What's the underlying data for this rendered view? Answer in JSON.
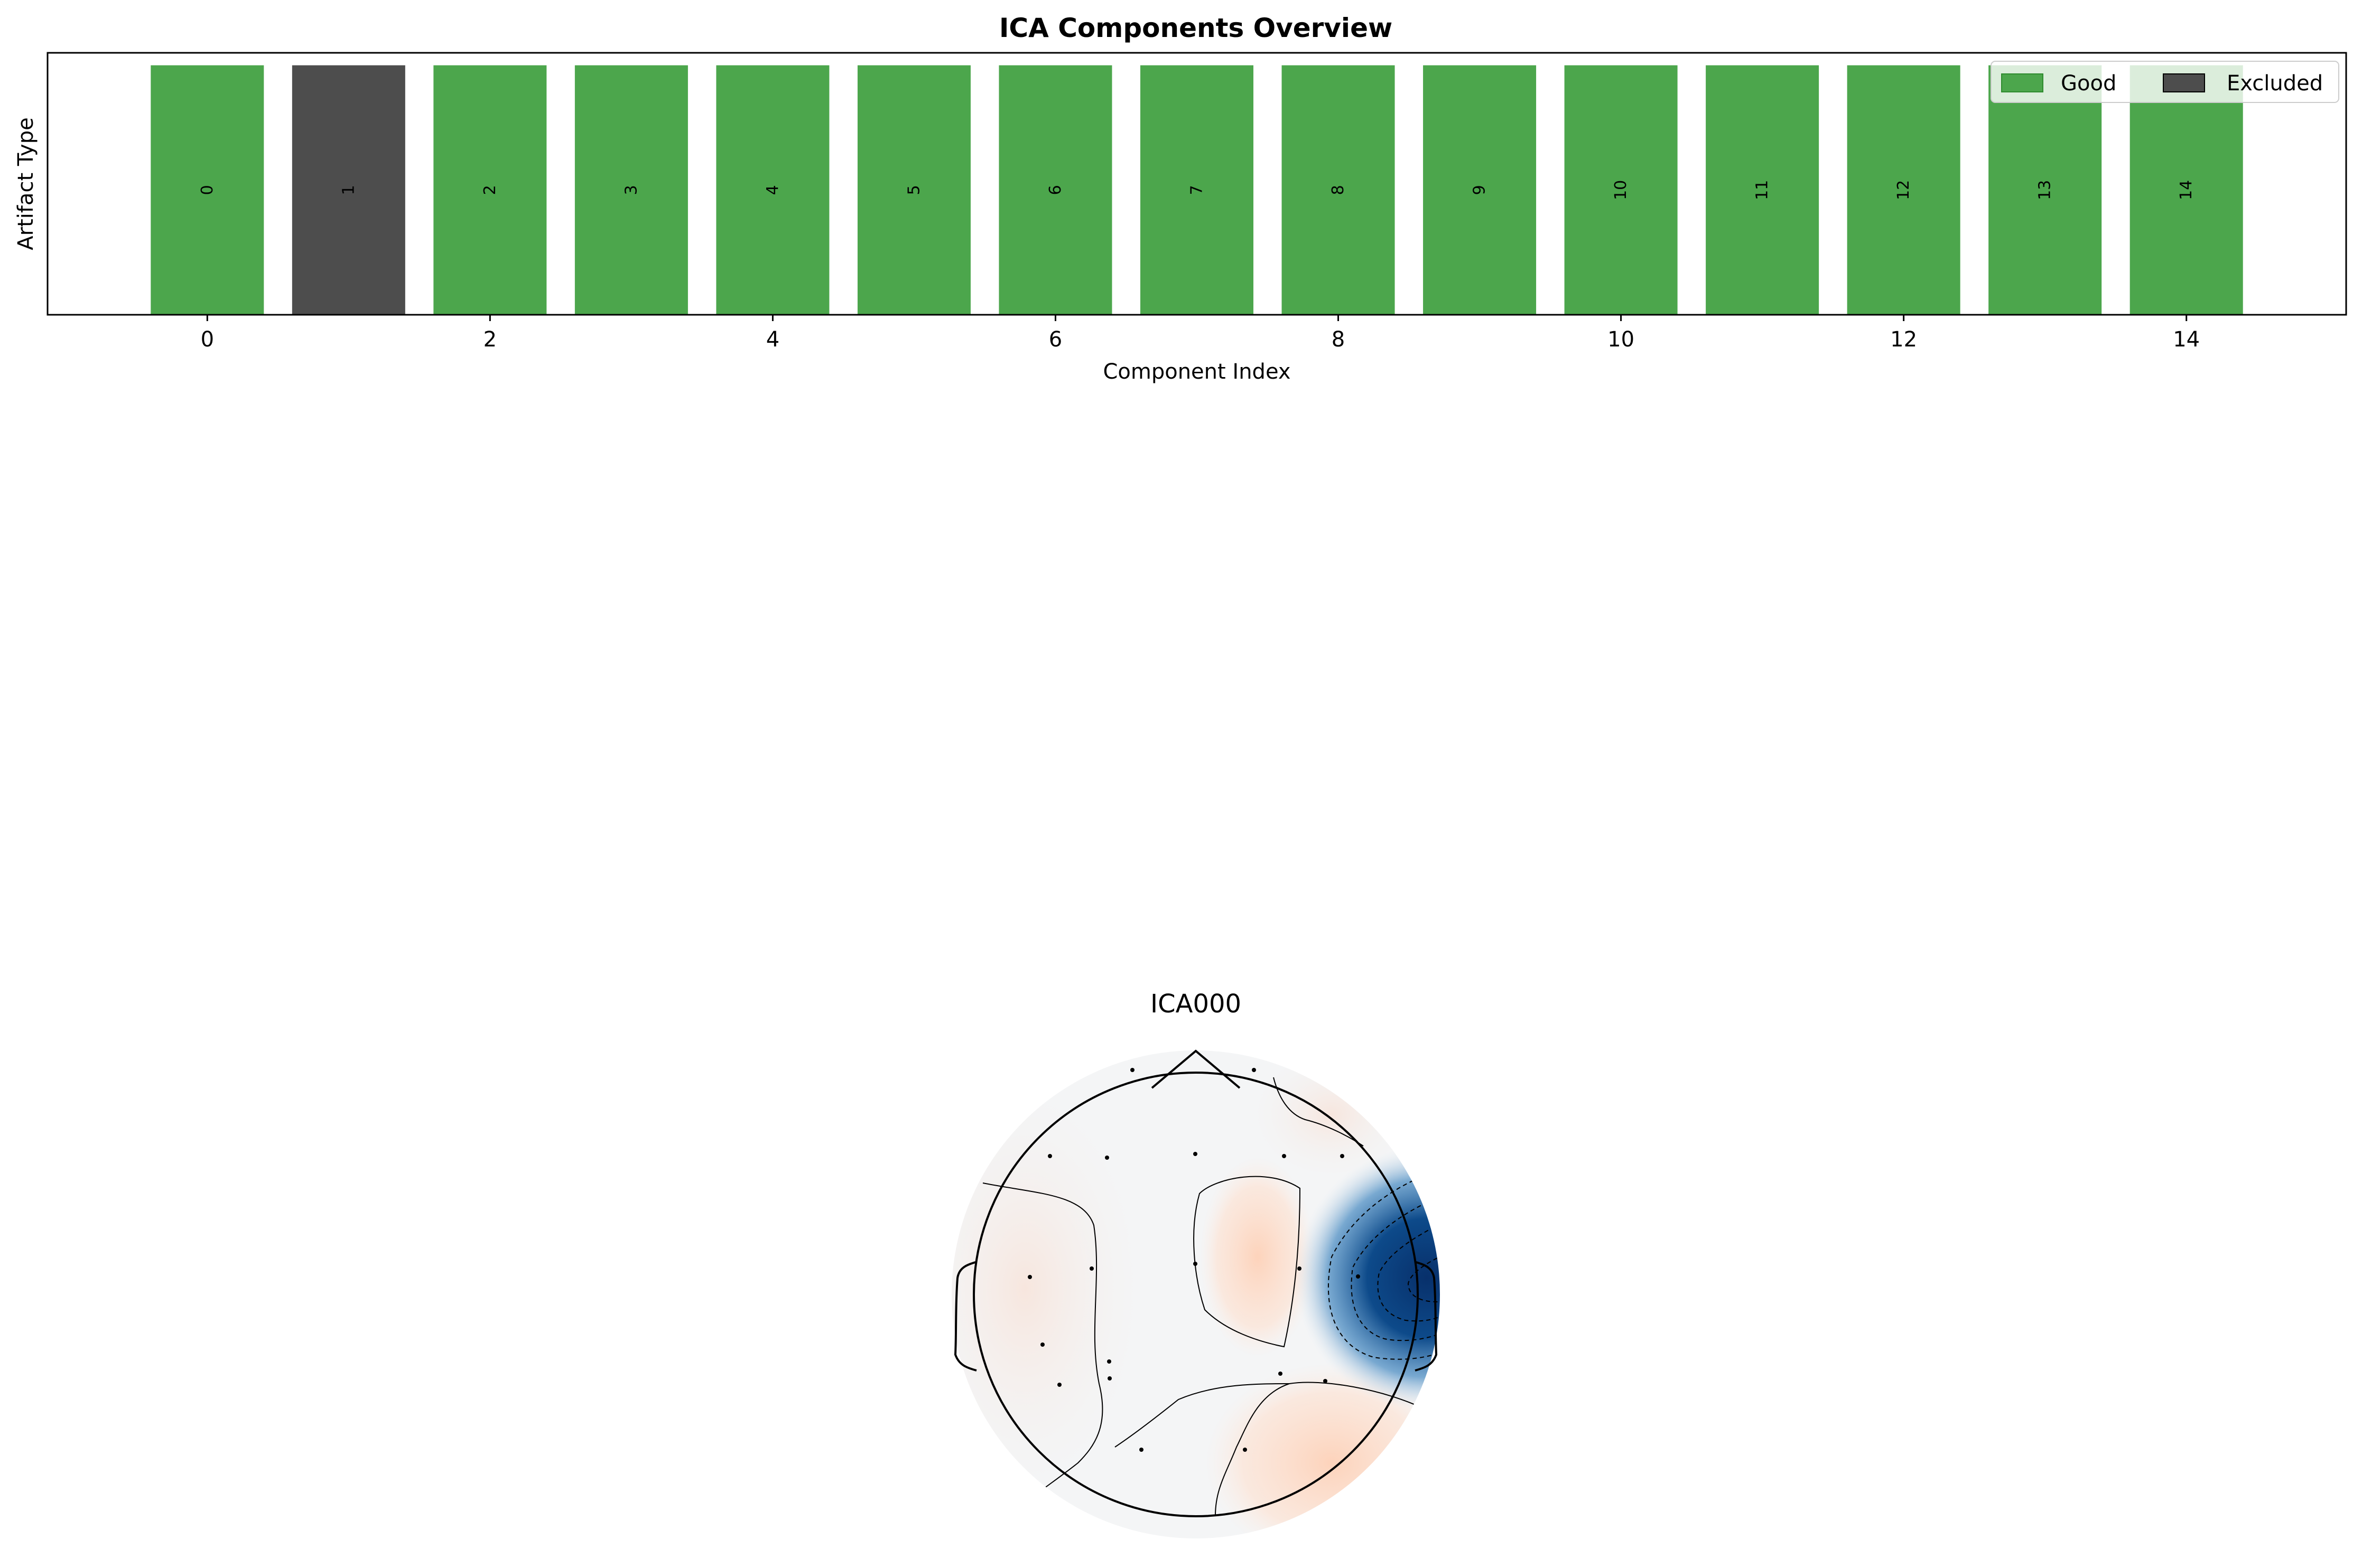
{
  "chart_data": [
    {
      "type": "bar",
      "title": "ICA Components Overview",
      "xlabel": "Component Index",
      "ylabel": "Artifact Type",
      "x": [
        0,
        1,
        2,
        3,
        4,
        5,
        6,
        7,
        8,
        9,
        10,
        11,
        12,
        13,
        14
      ],
      "values": [
        1,
        1,
        1,
        1,
        1,
        1,
        1,
        1,
        1,
        1,
        1,
        1,
        1,
        1,
        1
      ],
      "bar_labels": [
        "0",
        "1",
        "2",
        "3",
        "4",
        "5",
        "6",
        "7",
        "8",
        "9",
        "10",
        "11",
        "12",
        "13",
        "14"
      ],
      "status": [
        "Good",
        "Excluded",
        "Good",
        "Good",
        "Good",
        "Good",
        "Good",
        "Good",
        "Good",
        "Good",
        "Good",
        "Good",
        "Good",
        "Good",
        "Good"
      ],
      "xticks": [
        "0",
        "2",
        "4",
        "6",
        "8",
        "10",
        "12",
        "14"
      ],
      "xlim": [
        -1.13,
        15.13
      ],
      "ylim": [
        0,
        1.05
      ],
      "colors": {
        "Good": "#4ca64c",
        "Excluded": "#4d4d4d"
      },
      "legend": [
        {
          "label": "Good",
          "color": "#4ca64c"
        },
        {
          "label": "Excluded",
          "color": "#4d4d4d"
        }
      ],
      "legend_position": "top-right",
      "grid": false
    },
    {
      "type": "heatmap",
      "title": "ICA000",
      "colormap": "RdBu_r",
      "colors": {
        "negative": "#08306b",
        "neutral": "#f4f5f6",
        "positive": "#fdd9c4"
      }
    }
  ]
}
